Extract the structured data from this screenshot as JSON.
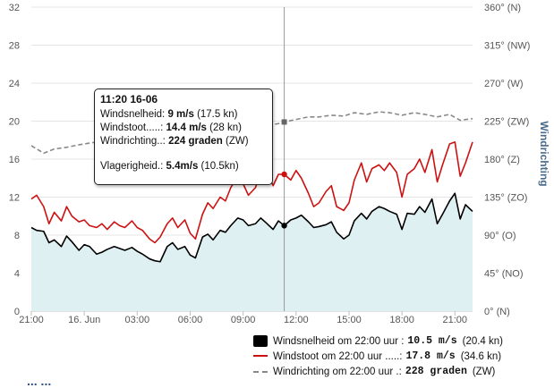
{
  "tooltip": {
    "title": "11:20 16-06",
    "speed_label": "Windsnelheid:",
    "speed_value": "9 m/s",
    "speed_kn": "(17.5 kn)",
    "gust_label": "Windstoot.....:",
    "gust_value": "14.4 m/s",
    "gust_kn": "(28 kn)",
    "dir_label": "Windrichting..:",
    "dir_value": "224 graden",
    "dir_code": "(ZW)",
    "gustiness_label": "Vlagerigheid.:",
    "gustiness_value": "5.4m/s",
    "gustiness_kn": "(10.5kn)"
  },
  "legend": {
    "speed_text": "Windsnelheid om 22:00 uur :",
    "speed_value": "10.5 m/s",
    "speed_kn": "(20.4 kn)",
    "gust_text": "Windstoot om 22:00 uur .....:",
    "gust_value": "17.8 m/s",
    "gust_kn": "(34.6 kn)",
    "dir_text": "Windrichting om 22:00 uur .:",
    "dir_value": "228 graden",
    "dir_code": "(ZW)"
  },
  "cutoff_text": "... ...",
  "colors": {
    "speed": "#000000",
    "gust": "#cc1111",
    "direction": "#888888",
    "area": "#dff0f3",
    "crosshair": "#999999"
  },
  "chart_data": {
    "type": "line",
    "title": "",
    "xlabel": "",
    "ylabel_left": "",
    "ylabel_right": "Windrichting",
    "x_ticks": [
      "21:00",
      "16. Jun",
      "03:00",
      "06:00",
      "09:00",
      "12:00",
      "15:00",
      "18:00",
      "21:00"
    ],
    "x_tick_hours": [
      0,
      3,
      6,
      9,
      12,
      15,
      18,
      21,
      24
    ],
    "xlim_hours": [
      0,
      25
    ],
    "y_left_ticks": [
      "0",
      "4",
      "8",
      "12",
      "16",
      "20",
      "24",
      "28",
      "32"
    ],
    "y_left_tick_values": [
      0,
      4,
      8,
      12,
      16,
      20,
      24,
      28,
      32
    ],
    "ylim_left": [
      0,
      32
    ],
    "y_right_ticks": [
      "0° (N)",
      "45° (NO)",
      "90° (O)",
      "135° (ZO)",
      "180° (Z)",
      "225° (ZW)",
      "270° (W)",
      "315° (NW)",
      "360° (N)"
    ],
    "y_right_tick_values": [
      0,
      45,
      90,
      135,
      180,
      225,
      270,
      315,
      360
    ],
    "ylim_right": [
      0,
      360
    ],
    "crosshair_hour": 14.33,
    "grid": true,
    "series": [
      {
        "name": "Windsnelheid",
        "axis": "left",
        "style": "area",
        "x": [
          0,
          0.3,
          0.7,
          1,
          1.3,
          1.7,
          2,
          2.3,
          2.7,
          3,
          3.3,
          3.7,
          4,
          4.3,
          4.7,
          5,
          5.3,
          5.7,
          6,
          6.3,
          6.7,
          7,
          7.3,
          7.7,
          8,
          8.3,
          8.7,
          9,
          9.3,
          9.7,
          10,
          10.3,
          10.7,
          11,
          11.3,
          11.7,
          12,
          12.3,
          12.7,
          13,
          13.3,
          13.7,
          14,
          14.33,
          14.7,
          15,
          15.3,
          15.7,
          16,
          16.3,
          16.7,
          17,
          17.3,
          17.7,
          18,
          18.3,
          18.7,
          19,
          19.3,
          19.7,
          20,
          20.3,
          20.7,
          21,
          21.3,
          21.7,
          22,
          22.3,
          22.7,
          23,
          23.3,
          23.7,
          24,
          24.3,
          24.6,
          25
        ],
        "values": [
          8.8,
          8.5,
          8.4,
          7.2,
          7.5,
          6.8,
          7.9,
          7.3,
          6.4,
          7.0,
          6.8,
          6.0,
          6.2,
          6.5,
          6.8,
          6.6,
          6.4,
          6.7,
          6.3,
          6.0,
          5.5,
          5.3,
          5.2,
          6.8,
          7.2,
          6.5,
          6.8,
          5.9,
          5.6,
          7.8,
          8.1,
          7.5,
          8.5,
          8.3,
          9.0,
          9.8,
          9.6,
          9.0,
          9.2,
          9.8,
          9.3,
          8.6,
          9.5,
          9.0,
          9.6,
          9.8,
          10.1,
          9.4,
          8.8,
          8.9,
          9.1,
          9.4,
          8.3,
          7.6,
          8.0,
          9.5,
          10.3,
          9.7,
          10.5,
          11.0,
          10.8,
          10.5,
          10.2,
          8.6,
          10.3,
          10.2,
          11.0,
          10.4,
          11.8,
          9.2,
          10.2,
          11.6,
          12.4,
          9.7,
          11.2,
          10.5
        ],
        "color": "#000000"
      },
      {
        "name": "Windstoot",
        "axis": "left",
        "style": "line",
        "x": [
          0,
          0.3,
          0.7,
          1,
          1.3,
          1.7,
          2,
          2.3,
          2.7,
          3,
          3.3,
          3.7,
          4,
          4.3,
          4.7,
          5,
          5.3,
          5.7,
          6,
          6.3,
          6.7,
          7,
          7.3,
          7.7,
          8,
          8.3,
          8.7,
          9,
          9.3,
          9.7,
          10,
          10.3,
          10.7,
          11,
          11.3,
          11.7,
          12,
          12.3,
          12.7,
          13,
          13.3,
          13.7,
          14,
          14.33,
          14.7,
          15,
          15.3,
          15.7,
          16,
          16.3,
          16.7,
          17,
          17.3,
          17.7,
          18,
          18.3,
          18.7,
          19,
          19.3,
          19.7,
          20,
          20.3,
          20.7,
          21,
          21.3,
          21.7,
          22,
          22.3,
          22.7,
          23,
          23.3,
          23.7,
          24,
          24.3,
          24.6,
          25
        ],
        "values": [
          11.8,
          12.2,
          11.0,
          9.2,
          10.4,
          9.5,
          11.0,
          10.0,
          9.4,
          9.6,
          9.0,
          8.8,
          9.2,
          8.6,
          9.4,
          9.0,
          8.8,
          9.5,
          8.8,
          8.5,
          7.6,
          7.2,
          7.8,
          9.2,
          9.8,
          8.8,
          9.6,
          8.2,
          7.6,
          10.2,
          11.4,
          10.8,
          12.0,
          11.6,
          13.0,
          14.2,
          13.4,
          12.2,
          13.0,
          14.6,
          15.0,
          13.2,
          14.4,
          14.4,
          13.8,
          14.8,
          14.0,
          12.4,
          11.0,
          11.4,
          12.6,
          13.2,
          11.0,
          10.6,
          11.4,
          13.8,
          15.6,
          13.6,
          15.0,
          15.4,
          14.8,
          15.6,
          14.6,
          12.0,
          14.4,
          15.0,
          16.0,
          14.6,
          17.0,
          13.6,
          15.4,
          17.6,
          17.8,
          14.2,
          15.6,
          17.8
        ],
        "color": "#cc1111"
      },
      {
        "name": "Windrichting",
        "axis": "right",
        "style": "dashed",
        "x": [
          0,
          0.7,
          1.3,
          2,
          2.7,
          3.3,
          4,
          4.7,
          5.3,
          6,
          6.7,
          7.3,
          8,
          8.7,
          9.3,
          10,
          10.7,
          11.3,
          12,
          12.7,
          13.3,
          14,
          14.33,
          15,
          15.7,
          16.3,
          17,
          17.7,
          18.3,
          19,
          19.7,
          20.3,
          21,
          21.7,
          22.3,
          23,
          23.7,
          24.3,
          25
        ],
        "values": [
          196,
          187,
          192,
          194,
          197,
          199,
          201,
          199,
          202,
          206,
          203,
          208,
          205,
          209,
          210,
          212,
          214,
          215,
          217,
          219,
          220,
          222,
          224,
          227,
          230,
          230,
          232,
          231,
          235,
          233,
          236,
          235,
          232,
          235,
          233,
          230,
          233,
          226,
          228
        ],
        "color": "#888888"
      }
    ]
  }
}
